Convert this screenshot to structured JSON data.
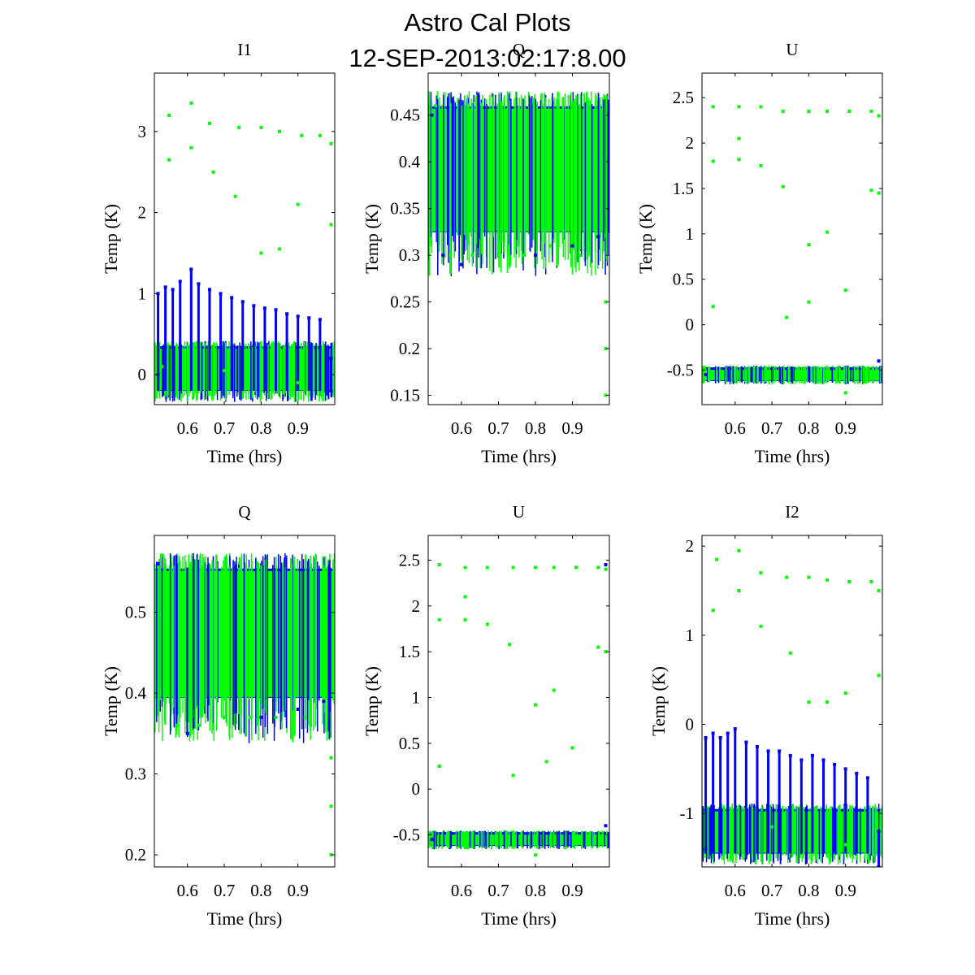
{
  "figure": {
    "title": "Astro Cal Plots",
    "subtitle": "12-SEP-2013:02:17:8.00"
  },
  "colors": {
    "series_a": "#0000ff",
    "series_b": "#00ff00"
  },
  "chart_data": [
    {
      "type": "scatter",
      "title": "I1",
      "xlabel": "Time (hrs)",
      "ylabel": "Temp (K)",
      "xlim": [
        0.51,
        1.0
      ],
      "ylim": [
        -0.37,
        3.72
      ],
      "xticks": [
        0.6,
        0.7,
        0.8,
        0.9
      ],
      "xticklabels": [
        "0.6",
        "0.7",
        "0.8",
        "0.9"
      ],
      "yticks": [
        0,
        1,
        2,
        3
      ],
      "yticklabels": [
        "0",
        "1",
        "2",
        "3"
      ],
      "grid": false,
      "series": [
        {
          "color": "#0000ff",
          "points": [
            [
              0.52,
              1.0
            ],
            [
              0.52,
              0.0
            ],
            [
              0.54,
              1.08
            ],
            [
              0.56,
              1.05
            ],
            [
              0.58,
              1.15
            ],
            [
              0.61,
              1.3
            ],
            [
              0.63,
              1.12
            ],
            [
              0.66,
              1.05
            ],
            [
              0.69,
              1.0
            ],
            [
              0.72,
              0.95
            ],
            [
              0.75,
              0.9
            ],
            [
              0.78,
              0.85
            ],
            [
              0.81,
              0.82
            ],
            [
              0.84,
              0.8
            ],
            [
              0.87,
              0.75
            ],
            [
              0.9,
              0.72
            ],
            [
              0.93,
              0.7
            ],
            [
              0.96,
              0.68
            ],
            [
              0.99,
              0.2
            ],
            [
              0.99,
              -0.2
            ]
          ]
        },
        {
          "color": "#00ff00",
          "points": [
            [
              0.53,
              0.1
            ],
            [
              0.55,
              3.2
            ],
            [
              0.55,
              2.65
            ],
            [
              0.61,
              3.35
            ],
            [
              0.61,
              2.8
            ],
            [
              0.66,
              3.1
            ],
            [
              0.67,
              2.5
            ],
            [
              0.74,
              3.05
            ],
            [
              0.73,
              2.2
            ],
            [
              0.8,
              3.05
            ],
            [
              0.8,
              1.5
            ],
            [
              0.85,
              3.0
            ],
            [
              0.85,
              1.55
            ],
            [
              0.91,
              2.95
            ],
            [
              0.9,
              2.1
            ],
            [
              0.96,
              2.95
            ],
            [
              0.99,
              2.85
            ],
            [
              0.99,
              1.85
            ],
            [
              0.7,
              0.05
            ],
            [
              0.9,
              -0.1
            ]
          ]
        }
      ]
    },
    {
      "type": "scatter",
      "title": "Q",
      "xlabel": "Time (hrs)",
      "ylabel": "Temp (K)",
      "xlim": [
        0.51,
        1.0
      ],
      "ylim": [
        0.14,
        0.495
      ],
      "xticks": [
        0.6,
        0.7,
        0.8,
        0.9
      ],
      "xticklabels": [
        "0.6",
        "0.7",
        "0.8",
        "0.9"
      ],
      "yticks": [
        0.15,
        0.2,
        0.25,
        0.3,
        0.35,
        0.4,
        0.45
      ],
      "yticklabels": [
        "0.15",
        "0.2",
        "0.25",
        "0.3",
        "0.35",
        "0.4",
        "0.45"
      ],
      "grid": false,
      "series": [
        {
          "color": "#0000ff",
          "points": [
            [
              0.52,
              0.45
            ],
            [
              0.55,
              0.3
            ],
            [
              0.6,
              0.29
            ],
            [
              0.7,
              0.3
            ],
            [
              0.8,
              0.3
            ],
            [
              0.9,
              0.31
            ],
            [
              0.97,
              0.32
            ]
          ]
        },
        {
          "color": "#00ff00",
          "points": [
            [
              0.53,
              0.46
            ],
            [
              0.57,
              0.3
            ],
            [
              0.63,
              0.3
            ],
            [
              0.7,
              0.3
            ],
            [
              0.77,
              0.3
            ],
            [
              0.84,
              0.31
            ],
            [
              0.92,
              0.3
            ],
            [
              0.99,
              0.25
            ],
            [
              0.99,
              0.2
            ],
            [
              0.99,
              0.15
            ]
          ]
        }
      ]
    },
    {
      "type": "scatter",
      "title": "U",
      "xlabel": "Time (hrs)",
      "ylabel": "Temp (K)",
      "xlim": [
        0.51,
        1.0
      ],
      "ylim": [
        -0.88,
        2.77
      ],
      "xticks": [
        0.6,
        0.7,
        0.8,
        0.9
      ],
      "xticklabels": [
        "0.6",
        "0.7",
        "0.8",
        "0.9"
      ],
      "yticks": [
        -0.5,
        0,
        0.5,
        1,
        1.5,
        2,
        2.5
      ],
      "yticklabels": [
        "-0.5",
        "0",
        "0.5",
        "1",
        "1.5",
        "2",
        "2.5"
      ],
      "grid": false,
      "series": [
        {
          "color": "#0000ff",
          "points": [
            [
              0.52,
              -0.55
            ],
            [
              0.99,
              2.3
            ],
            [
              0.99,
              -0.4
            ]
          ]
        },
        {
          "color": "#00ff00",
          "points": [
            [
              0.54,
              2.4
            ],
            [
              0.54,
              1.8
            ],
            [
              0.54,
              0.2
            ],
            [
              0.61,
              2.4
            ],
            [
              0.61,
              2.05
            ],
            [
              0.61,
              1.82
            ],
            [
              0.67,
              2.4
            ],
            [
              0.67,
              1.75
            ],
            [
              0.73,
              2.35
            ],
            [
              0.73,
              1.52
            ],
            [
              0.74,
              0.08
            ],
            [
              0.8,
              2.35
            ],
            [
              0.8,
              0.88
            ],
            [
              0.85,
              2.35
            ],
            [
              0.85,
              1.02
            ],
            [
              0.8,
              0.25
            ],
            [
              0.91,
              2.35
            ],
            [
              0.9,
              0.38
            ],
            [
              0.97,
              2.35
            ],
            [
              0.97,
              1.48
            ],
            [
              0.99,
              2.3
            ],
            [
              0.99,
              1.45
            ],
            [
              0.9,
              -0.75
            ]
          ]
        }
      ]
    },
    {
      "type": "scatter",
      "title": "Q",
      "xlabel": "Time (hrs)",
      "ylabel": "Temp (K)",
      "xlim": [
        0.51,
        1.0
      ],
      "ylim": [
        0.185,
        0.595
      ],
      "xticks": [
        0.6,
        0.7,
        0.8,
        0.9
      ],
      "xticklabels": [
        "0.6",
        "0.7",
        "0.8",
        "0.9"
      ],
      "yticks": [
        0.2,
        0.3,
        0.4,
        0.5
      ],
      "yticklabels": [
        "0.2",
        "0.3",
        "0.4",
        "0.5"
      ],
      "grid": false,
      "series": [
        {
          "color": "#0000ff",
          "points": [
            [
              0.52,
              0.56
            ],
            [
              0.6,
              0.35
            ],
            [
              0.7,
              0.37
            ],
            [
              0.8,
              0.37
            ],
            [
              0.9,
              0.38
            ],
            [
              0.97,
              0.39
            ]
          ]
        },
        {
          "color": "#00ff00",
          "points": [
            [
              0.53,
              0.57
            ],
            [
              0.57,
              0.36
            ],
            [
              0.63,
              0.36
            ],
            [
              0.7,
              0.37
            ],
            [
              0.77,
              0.37
            ],
            [
              0.84,
              0.37
            ],
            [
              0.92,
              0.37
            ],
            [
              0.99,
              0.32
            ],
            [
              0.99,
              0.26
            ],
            [
              0.99,
              0.2
            ]
          ]
        }
      ]
    },
    {
      "type": "scatter",
      "title": "U",
      "xlabel": "Time (hrs)",
      "ylabel": "Temp (K)",
      "xlim": [
        0.51,
        1.0
      ],
      "ylim": [
        -0.85,
        2.77
      ],
      "xticks": [
        0.6,
        0.7,
        0.8,
        0.9
      ],
      "xticklabels": [
        "0.6",
        "0.7",
        "0.8",
        "0.9"
      ],
      "yticks": [
        -0.5,
        0,
        0.5,
        1,
        1.5,
        2,
        2.5
      ],
      "yticklabels": [
        "-0.5",
        "0",
        "0.5",
        "1",
        "1.5",
        "2",
        "2.5"
      ],
      "grid": false,
      "series": [
        {
          "color": "#0000ff",
          "points": [
            [
              0.52,
              -0.55
            ],
            [
              0.99,
              2.45
            ],
            [
              0.99,
              -0.4
            ]
          ]
        },
        {
          "color": "#00ff00",
          "points": [
            [
              0.54,
              2.45
            ],
            [
              0.54,
              1.85
            ],
            [
              0.54,
              0.25
            ],
            [
              0.61,
              2.42
            ],
            [
              0.61,
              2.1
            ],
            [
              0.61,
              1.85
            ],
            [
              0.67,
              2.42
            ],
            [
              0.67,
              1.8
            ],
            [
              0.74,
              2.42
            ],
            [
              0.73,
              1.58
            ],
            [
              0.74,
              0.15
            ],
            [
              0.8,
              2.42
            ],
            [
              0.8,
              0.92
            ],
            [
              0.85,
              2.42
            ],
            [
              0.85,
              1.08
            ],
            [
              0.83,
              0.3
            ],
            [
              0.91,
              2.42
            ],
            [
              0.9,
              0.45
            ],
            [
              0.97,
              2.42
            ],
            [
              0.97,
              1.55
            ],
            [
              0.99,
              2.4
            ],
            [
              0.99,
              1.5
            ],
            [
              0.8,
              -0.72
            ]
          ]
        }
      ]
    },
    {
      "type": "scatter",
      "title": "I2",
      "xlabel": "Time (hrs)",
      "ylabel": "Temp (K)",
      "xlim": [
        0.51,
        1.0
      ],
      "ylim": [
        -1.6,
        2.12
      ],
      "xticks": [
        0.6,
        0.7,
        0.8,
        0.9
      ],
      "xticklabels": [
        "0.6",
        "0.7",
        "0.8",
        "0.9"
      ],
      "yticks": [
        -1,
        0,
        1,
        2
      ],
      "yticklabels": [
        "-1",
        "0",
        "1",
        "2"
      ],
      "grid": false,
      "series": [
        {
          "color": "#0000ff",
          "points": [
            [
              0.52,
              -0.15
            ],
            [
              0.52,
              -1.4
            ],
            [
              0.54,
              -0.1
            ],
            [
              0.56,
              -0.15
            ],
            [
              0.58,
              -0.1
            ],
            [
              0.6,
              -0.05
            ],
            [
              0.63,
              -0.2
            ],
            [
              0.66,
              -0.25
            ],
            [
              0.69,
              -0.3
            ],
            [
              0.72,
              -0.3
            ],
            [
              0.75,
              -0.35
            ],
            [
              0.78,
              -0.4
            ],
            [
              0.81,
              -0.35
            ],
            [
              0.84,
              -0.4
            ],
            [
              0.87,
              -0.45
            ],
            [
              0.9,
              -0.5
            ],
            [
              0.93,
              -0.55
            ],
            [
              0.96,
              -0.6
            ],
            [
              0.99,
              -1.2
            ],
            [
              0.99,
              -1.6
            ]
          ]
        },
        {
          "color": "#00ff00",
          "points": [
            [
              0.55,
              1.85
            ],
            [
              0.54,
              1.28
            ],
            [
              0.61,
              1.95
            ],
            [
              0.61,
              1.5
            ],
            [
              0.67,
              1.7
            ],
            [
              0.67,
              1.1
            ],
            [
              0.74,
              1.65
            ],
            [
              0.75,
              0.8
            ],
            [
              0.8,
              1.65
            ],
            [
              0.8,
              0.25
            ],
            [
              0.85,
              1.62
            ],
            [
              0.85,
              0.25
            ],
            [
              0.91,
              1.6
            ],
            [
              0.9,
              0.35
            ],
            [
              0.97,
              1.6
            ],
            [
              0.99,
              1.5
            ],
            [
              0.99,
              0.55
            ],
            [
              0.7,
              -1.15
            ],
            [
              0.9,
              -1.35
            ]
          ]
        }
      ]
    }
  ]
}
